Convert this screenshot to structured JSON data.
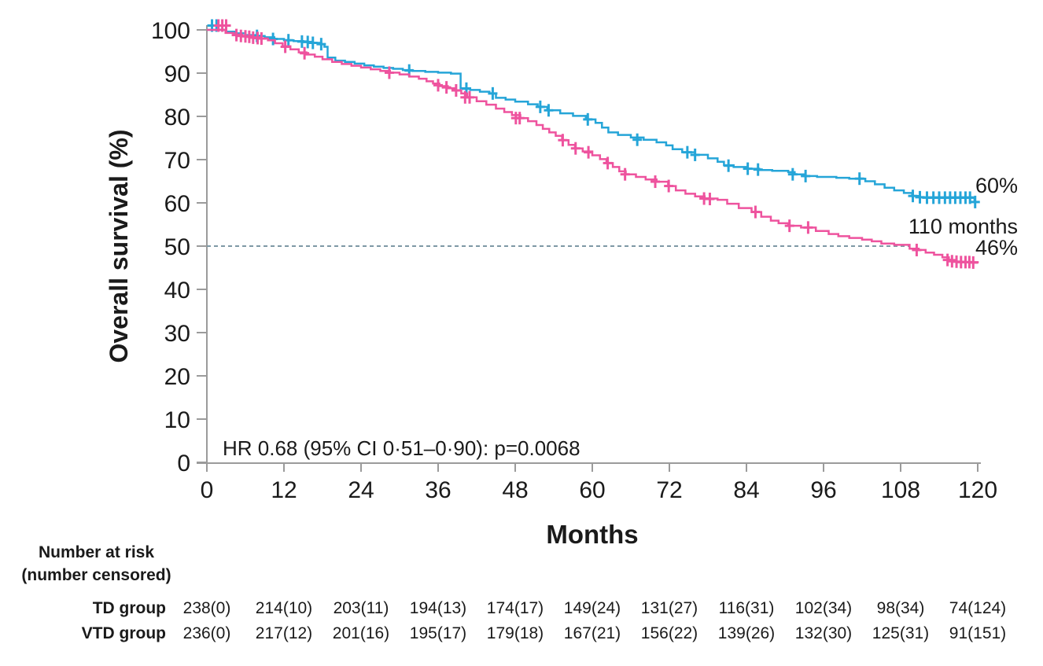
{
  "style": {
    "background": "#ffffff",
    "axis_color": "#9b9b9b",
    "text_color": "#1a1a1a",
    "blue": "#25a5d8",
    "pink": "#ee539e",
    "dash_color": "#7e98a5"
  },
  "chart_data": {
    "type": "line",
    "subtype": "kaplan-meier-step",
    "title": "",
    "xlabel": "Months",
    "ylabel": "Overall survival (%)",
    "xlim": [
      0,
      120
    ],
    "ylim": [
      0,
      100
    ],
    "xticks": [
      0,
      12,
      24,
      36,
      48,
      60,
      72,
      84,
      96,
      108,
      120
    ],
    "yticks": [
      0,
      10,
      20,
      30,
      40,
      50,
      60,
      70,
      80,
      90,
      100
    ],
    "grid": false,
    "legend_position": "none",
    "reference_line": {
      "y": 50,
      "x_start": 0,
      "x_end": 109.4,
      "style": "dashed"
    },
    "annotations": {
      "hr_text": "HR 0.68 (95% CI 0·51–0·90): p=0.0068",
      "median_label": "110 months"
    },
    "series": [
      {
        "name": "VTD group",
        "color": "#25a5d8",
        "end_label": "60%",
        "points": [
          [
            0,
            100
          ],
          [
            3,
            99.6
          ],
          [
            4.5,
            99.2
          ],
          [
            6,
            98.8
          ],
          [
            7.5,
            98.6
          ],
          [
            9,
            98.3
          ],
          [
            10.5,
            97.9
          ],
          [
            12,
            97.6
          ],
          [
            13.5,
            97.4
          ],
          [
            15,
            97.2
          ],
          [
            16.5,
            97
          ],
          [
            17.5,
            96.7
          ],
          [
            18.3,
            96.1
          ],
          [
            18.8,
            93.6
          ],
          [
            20,
            92.9
          ],
          [
            21.5,
            92.6
          ],
          [
            23,
            92.2
          ],
          [
            24.5,
            91.8
          ],
          [
            26,
            91.5
          ],
          [
            27.5,
            91.2
          ],
          [
            29,
            91
          ],
          [
            30.5,
            90.7
          ],
          [
            32,
            90.5
          ],
          [
            34,
            90.3
          ],
          [
            36,
            90.1
          ],
          [
            38,
            89.9
          ],
          [
            39.5,
            86.5
          ],
          [
            41,
            86.1
          ],
          [
            42.5,
            85.7
          ],
          [
            44,
            85.3
          ],
          [
            45,
            84.3
          ],
          [
            46.5,
            83.9
          ],
          [
            48,
            83.4
          ],
          [
            50,
            82.8
          ],
          [
            51.5,
            82.2
          ],
          [
            53,
            81.4
          ],
          [
            55,
            80.7
          ],
          [
            57,
            80.1
          ],
          [
            59,
            79.3
          ],
          [
            60.5,
            78.5
          ],
          [
            61.5,
            77.4
          ],
          [
            62.5,
            76.3
          ],
          [
            64,
            75.7
          ],
          [
            66,
            75.1
          ],
          [
            68,
            74.6
          ],
          [
            70,
            74
          ],
          [
            71.5,
            73.3
          ],
          [
            72.5,
            72.4
          ],
          [
            74,
            71.7
          ],
          [
            76,
            71.1
          ],
          [
            78,
            70.3
          ],
          [
            79.5,
            69.5
          ],
          [
            80.5,
            68.7
          ],
          [
            82,
            68.3
          ],
          [
            84,
            67.9
          ],
          [
            86,
            67.6
          ],
          [
            88,
            67.4
          ],
          [
            90.5,
            67.1
          ],
          [
            91.5,
            66.6
          ],
          [
            93,
            66.2
          ],
          [
            95,
            66
          ],
          [
            98,
            65.8
          ],
          [
            100,
            65.6
          ],
          [
            102.5,
            65
          ],
          [
            104,
            64.3
          ],
          [
            105.5,
            63.5
          ],
          [
            107,
            62.9
          ],
          [
            108.5,
            62.3
          ],
          [
            109.8,
            61.6
          ],
          [
            111,
            61.3
          ],
          [
            119.2,
            61.2
          ],
          [
            119.5,
            60.2
          ],
          [
            120,
            60
          ]
        ],
        "censors": [
          [
            0.8,
            101
          ],
          [
            1.5,
            101
          ],
          [
            7.8,
            98.6
          ],
          [
            10.3,
            97.9
          ],
          [
            12.7,
            97.6
          ],
          [
            14.8,
            97.3
          ],
          [
            15.7,
            97.2
          ],
          [
            16.5,
            97
          ],
          [
            17.8,
            96.7
          ],
          [
            31.5,
            90.6
          ],
          [
            40.4,
            86.4
          ],
          [
            44.5,
            85.3
          ],
          [
            51.9,
            82.2
          ],
          [
            53.2,
            81.4
          ],
          [
            59.3,
            79.3
          ],
          [
            67,
            74.6
          ],
          [
            74.8,
            71.7
          ],
          [
            76,
            71.1
          ],
          [
            81.2,
            68.6
          ],
          [
            84.2,
            67.9
          ],
          [
            85.8,
            67.7
          ],
          [
            91.2,
            66.6
          ],
          [
            93.2,
            66.2
          ],
          [
            101.6,
            65.6
          ],
          [
            109.9,
            61.6
          ],
          [
            111,
            61.3
          ],
          [
            112.1,
            61.2
          ],
          [
            113.1,
            61.2
          ],
          [
            114,
            61.2
          ],
          [
            114.9,
            61.2
          ],
          [
            115.7,
            61.2
          ],
          [
            116.5,
            61.2
          ],
          [
            117.3,
            61.2
          ],
          [
            118.1,
            61.2
          ],
          [
            118.8,
            61.2
          ],
          [
            119.6,
            60.2
          ]
        ]
      },
      {
        "name": "TD group",
        "color": "#ee539e",
        "end_label": "46%",
        "points": [
          [
            0,
            100
          ],
          [
            2.9,
            99.3
          ],
          [
            4.2,
            98.9
          ],
          [
            5.5,
            98.6
          ],
          [
            7,
            98.3
          ],
          [
            8.2,
            98
          ],
          [
            9.5,
            97.6
          ],
          [
            10.6,
            96.9
          ],
          [
            11.8,
            96.2
          ],
          [
            13,
            95.5
          ],
          [
            14.3,
            94.8
          ],
          [
            15.5,
            94.3
          ],
          [
            16.8,
            93.8
          ],
          [
            18,
            93.2
          ],
          [
            19.5,
            92.6
          ],
          [
            21,
            92.1
          ],
          [
            22.5,
            91.7
          ],
          [
            24,
            91.3
          ],
          [
            25.5,
            90.9
          ],
          [
            27,
            90.5
          ],
          [
            28.5,
            90.1
          ],
          [
            30,
            89.7
          ],
          [
            31.5,
            89.2
          ],
          [
            33,
            88.7
          ],
          [
            34.2,
            88.1
          ],
          [
            35.2,
            87.6
          ],
          [
            36.2,
            87
          ],
          [
            37.5,
            86.5
          ],
          [
            38.7,
            86
          ],
          [
            39.6,
            85.3
          ],
          [
            40.5,
            84.4
          ],
          [
            42,
            83.5
          ],
          [
            43.5,
            82.7
          ],
          [
            45,
            81.8
          ],
          [
            46.3,
            81
          ],
          [
            47.5,
            80.3
          ],
          [
            48.8,
            79.6
          ],
          [
            50,
            78.9
          ],
          [
            51.3,
            78
          ],
          [
            52.3,
            77.1
          ],
          [
            53.3,
            76.3
          ],
          [
            54.3,
            75.5
          ],
          [
            55.3,
            74.5
          ],
          [
            56.3,
            73.4
          ],
          [
            57.3,
            72.6
          ],
          [
            58.5,
            71.9
          ],
          [
            60,
            71
          ],
          [
            61.2,
            70.1
          ],
          [
            62.2,
            69.2
          ],
          [
            63.2,
            68.3
          ],
          [
            64.2,
            67.3
          ],
          [
            65.2,
            66.6
          ],
          [
            66.8,
            66
          ],
          [
            68.3,
            65.4
          ],
          [
            70,
            64.9
          ],
          [
            71.8,
            63.9
          ],
          [
            73,
            62.9
          ],
          [
            74.5,
            62.1
          ],
          [
            76,
            61.5
          ],
          [
            77.5,
            61
          ],
          [
            79.5,
            60.7
          ],
          [
            81,
            59.8
          ],
          [
            82.8,
            58.8
          ],
          [
            84.8,
            57.9
          ],
          [
            86.3,
            56.8
          ],
          [
            87.8,
            55.9
          ],
          [
            89,
            55.3
          ],
          [
            90.5,
            54.7
          ],
          [
            92.5,
            54.3
          ],
          [
            94.8,
            53.5
          ],
          [
            96.8,
            52.8
          ],
          [
            98.3,
            52.3
          ],
          [
            100,
            51.9
          ],
          [
            102,
            51.5
          ],
          [
            103.5,
            51.1
          ],
          [
            105,
            50.6
          ],
          [
            107,
            50.3
          ],
          [
            109.4,
            49.4
          ],
          [
            110.8,
            49.1
          ],
          [
            111.9,
            48.5
          ],
          [
            113.2,
            48
          ],
          [
            114.5,
            47.4
          ],
          [
            115.5,
            46.8
          ],
          [
            116.5,
            46.4
          ],
          [
            118,
            46.3
          ],
          [
            120,
            46
          ]
        ],
        "censors": [
          [
            1.8,
            101
          ],
          [
            2.4,
            101
          ],
          [
            3,
            101
          ],
          [
            4.6,
            98.8
          ],
          [
            5.3,
            98.6
          ],
          [
            6,
            98.5
          ],
          [
            6.6,
            98.4
          ],
          [
            7.2,
            98.2
          ],
          [
            7.9,
            98.1
          ],
          [
            8.5,
            98
          ],
          [
            12.2,
            96.1
          ],
          [
            15.2,
            94.6
          ],
          [
            28.4,
            90.1
          ],
          [
            36,
            87.2
          ],
          [
            37.3,
            86.7
          ],
          [
            38.8,
            86
          ],
          [
            40.2,
            84.4
          ],
          [
            40.9,
            84.4
          ],
          [
            48.1,
            79.6
          ],
          [
            48.7,
            79.6
          ],
          [
            55.4,
            74.5
          ],
          [
            57.4,
            72.6
          ],
          [
            59.4,
            71.7
          ],
          [
            62.4,
            69.2
          ],
          [
            65.1,
            66.6
          ],
          [
            69.8,
            64.9
          ],
          [
            71.9,
            63.9
          ],
          [
            77.4,
            61
          ],
          [
            78.3,
            60.9
          ],
          [
            85.4,
            57.9
          ],
          [
            90.7,
            54.7
          ],
          [
            93.6,
            54.3
          ],
          [
            110.5,
            49.1
          ],
          [
            115.3,
            46.8
          ],
          [
            116,
            46.5
          ],
          [
            116.7,
            46.4
          ],
          [
            117.4,
            46.3
          ],
          [
            118.1,
            46.3
          ],
          [
            118.7,
            46.3
          ],
          [
            119.3,
            46.2
          ]
        ]
      }
    ]
  },
  "risk_table": {
    "header_line1": "Number at risk",
    "header_line2": "(number censored)",
    "months": [
      0,
      12,
      24,
      36,
      48,
      60,
      72,
      84,
      96,
      108,
      120
    ],
    "rows": [
      {
        "label": "TD group",
        "values": [
          "238(0)",
          "214(10)",
          "203(11)",
          "194(13)",
          "174(17)",
          "149(24)",
          "131(27)",
          "116(31)",
          "102(34)",
          "98(34)",
          "74(124)"
        ]
      },
      {
        "label": "VTD group",
        "values": [
          "236(0)",
          "217(12)",
          "201(16)",
          "195(17)",
          "179(18)",
          "167(21)",
          "156(22)",
          "139(26)",
          "132(30)",
          "125(31)",
          "91(151)"
        ]
      }
    ]
  }
}
